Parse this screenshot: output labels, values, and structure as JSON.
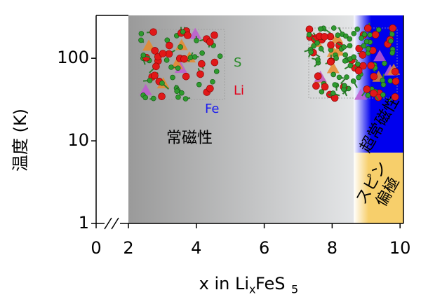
{
  "chart_data": {
    "type": "phase-diagram",
    "x_label": {
      "main": "x in Li",
      "sub1": "x",
      "mid": "FeS",
      "sub2": "5"
    },
    "y_label": "温度 (K)",
    "xlim": [
      0,
      10.1
    ],
    "xticks": [
      0,
      2,
      4,
      6,
      8,
      10
    ],
    "x_axis_break": true,
    "ylim": [
      1,
      330
    ],
    "yticks": [
      1,
      10,
      100
    ],
    "y_log": true,
    "regions": [
      {
        "label": [
          "常磁性"
        ],
        "color": "#999999",
        "x": [
          2,
          8.8
        ],
        "y": [
          1,
          330
        ]
      },
      {
        "label": [
          "超常磁性"
        ],
        "color": "#0000ee",
        "x": [
          8.8,
          10.1
        ],
        "y": [
          7.2,
          330
        ]
      },
      {
        "label": [
          "スピン",
          "偏極"
        ],
        "color": "#f7cf6b",
        "x": [
          8.8,
          10.1
        ],
        "y": [
          1,
          7.2
        ]
      }
    ],
    "atom_labels": [
      {
        "text": "S",
        "color": "#2a8a2a"
      },
      {
        "text": "Li",
        "color": "#e0001a"
      },
      {
        "text": "Fe",
        "color": "#1a1aee"
      }
    ]
  }
}
